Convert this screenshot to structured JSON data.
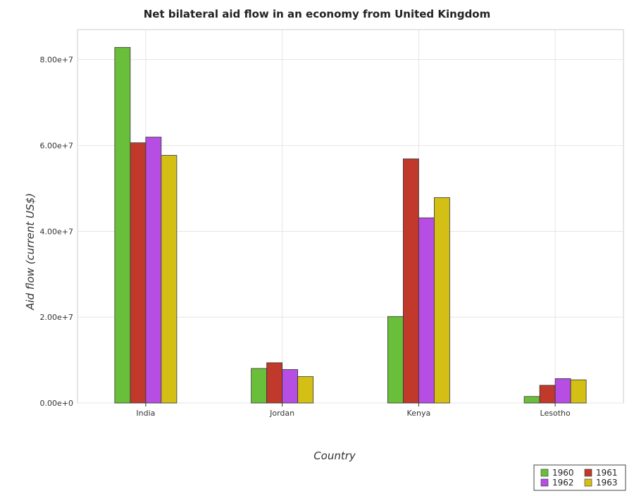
{
  "chart_data": {
    "type": "bar",
    "title": "Net bilateral aid flow in an economy from United Kingdom",
    "xlabel": "Country",
    "ylabel": "Aid flow (current US$)",
    "categories": [
      "India",
      "Jordan",
      "Kenya",
      "Lesotho"
    ],
    "series": [
      {
        "name": "1960",
        "color": "#6abf3a",
        "values": [
          82850000,
          8050000,
          20150000,
          1520000
        ]
      },
      {
        "name": "1961",
        "color": "#c0392b",
        "values": [
          60630000,
          9380000,
          56880000,
          4130000
        ]
      },
      {
        "name": "1962",
        "color": "#b64ee3",
        "values": [
          61950000,
          7800000,
          43150000,
          5680000
        ]
      },
      {
        "name": "1963",
        "color": "#d4c014",
        "values": [
          57700000,
          6150000,
          47850000,
          5400000
        ]
      }
    ],
    "ylim": [
      0,
      87000000
    ],
    "yticks": [
      0,
      20000000,
      40000000,
      60000000,
      80000000
    ],
    "ytick_labels": [
      "0.00e+0",
      "2.00e+7",
      "4.00e+7",
      "6.00e+7",
      "8.00e+7"
    ],
    "grid": true,
    "legend_position": "bottom-right"
  }
}
